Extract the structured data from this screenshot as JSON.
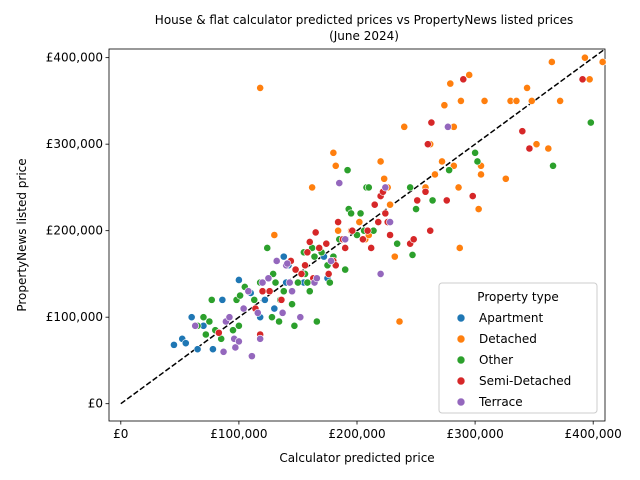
{
  "chart_data": {
    "type": "scatter",
    "title": "House & flat calculator predicted prices vs PropertyNews listed prices",
    "subtitle": "(June 2024)",
    "xlabel": "Calculator predicted price",
    "ylabel": "PropertyNews listed price",
    "xlim": [
      -10000,
      410000
    ],
    "ylim": [
      -20000,
      410000
    ],
    "x_ticks": [
      0,
      100000,
      200000,
      300000,
      400000
    ],
    "x_tick_labels": [
      "£0",
      "£100,000",
      "£200,000",
      "£300,000",
      "£400,000"
    ],
    "y_ticks": [
      0,
      100000,
      200000,
      300000,
      400000
    ],
    "y_tick_labels": [
      "£0",
      "£100,000",
      "£200,000",
      "£300,000",
      "£400,000"
    ],
    "grid": false,
    "reference_line": {
      "style": "dashed",
      "color": "#000000",
      "from": [
        0,
        0
      ],
      "to": [
        410000,
        410000
      ]
    },
    "legend": {
      "title": "Property type",
      "placement": "lower-right"
    },
    "series": [
      {
        "name": "Apartment",
        "color": "#1f77b4",
        "points": [
          [
            45000,
            68000
          ],
          [
            52000,
            75000
          ],
          [
            55000,
            70000
          ],
          [
            60000,
            100000
          ],
          [
            65000,
            63000
          ],
          [
            70000,
            90000
          ],
          [
            78000,
            63000
          ],
          [
            86000,
            120000
          ],
          [
            100000,
            143000
          ],
          [
            110000,
            128000
          ],
          [
            118000,
            100000
          ],
          [
            122000,
            120000
          ],
          [
            130000,
            110000
          ],
          [
            138000,
            170000
          ],
          [
            142000,
            160000
          ],
          [
            140000,
            140000
          ],
          [
            155000,
            140000
          ],
          [
            172000,
            170000
          ],
          [
            175000,
            145000
          ],
          [
            188000,
            190000
          ]
        ]
      },
      {
        "name": "Detached",
        "color": "#ff7f0e",
        "points": [
          [
            118000,
            365000
          ],
          [
            130000,
            195000
          ],
          [
            162000,
            250000
          ],
          [
            180000,
            290000
          ],
          [
            182000,
            275000
          ],
          [
            184000,
            200000
          ],
          [
            195000,
            200000
          ],
          [
            202000,
            210000
          ],
          [
            207000,
            190000
          ],
          [
            210000,
            195000
          ],
          [
            220000,
            280000
          ],
          [
            223000,
            260000
          ],
          [
            226000,
            250000
          ],
          [
            228000,
            230000
          ],
          [
            232000,
            170000
          ],
          [
            236000,
            95000
          ],
          [
            240000,
            320000
          ],
          [
            258000,
            250000
          ],
          [
            262000,
            300000
          ],
          [
            266000,
            265000
          ],
          [
            272000,
            280000
          ],
          [
            274000,
            345000
          ],
          [
            279000,
            370000
          ],
          [
            282000,
            320000
          ],
          [
            282000,
            275000
          ],
          [
            286000,
            250000
          ],
          [
            287000,
            180000
          ],
          [
            288000,
            350000
          ],
          [
            295000,
            380000
          ],
          [
            303000,
            225000
          ],
          [
            305000,
            275000
          ],
          [
            305000,
            265000
          ],
          [
            308000,
            350000
          ],
          [
            326000,
            260000
          ],
          [
            330000,
            350000
          ],
          [
            335000,
            350000
          ],
          [
            344000,
            365000
          ],
          [
            348000,
            350000
          ],
          [
            352000,
            300000
          ],
          [
            362000,
            295000
          ],
          [
            365000,
            395000
          ],
          [
            372000,
            350000
          ],
          [
            393000,
            400000
          ],
          [
            397000,
            375000
          ],
          [
            408000,
            395000
          ]
        ]
      },
      {
        "name": "Other",
        "color": "#2ca02c",
        "points": [
          [
            65000,
            90000
          ],
          [
            70000,
            100000
          ],
          [
            72000,
            80000
          ],
          [
            75000,
            95000
          ],
          [
            77000,
            120000
          ],
          [
            80000,
            85000
          ],
          [
            85000,
            75000
          ],
          [
            95000,
            85000
          ],
          [
            98000,
            120000
          ],
          [
            100000,
            90000
          ],
          [
            101000,
            125000
          ],
          [
            105000,
            135000
          ],
          [
            113000,
            120000
          ],
          [
            118000,
            140000
          ],
          [
            124000,
            180000
          ],
          [
            128000,
            100000
          ],
          [
            129000,
            150000
          ],
          [
            131000,
            140000
          ],
          [
            134000,
            95000
          ],
          [
            135000,
            120000
          ],
          [
            138000,
            130000
          ],
          [
            145000,
            115000
          ],
          [
            147000,
            90000
          ],
          [
            150000,
            140000
          ],
          [
            155000,
            175000
          ],
          [
            156000,
            150000
          ],
          [
            158000,
            140000
          ],
          [
            160000,
            130000
          ],
          [
            162000,
            180000
          ],
          [
            164000,
            170000
          ],
          [
            166000,
            95000
          ],
          [
            170000,
            175000
          ],
          [
            175000,
            160000
          ],
          [
            177000,
            140000
          ],
          [
            180000,
            170000
          ],
          [
            185000,
            190000
          ],
          [
            190000,
            155000
          ],
          [
            192000,
            270000
          ],
          [
            193000,
            225000
          ],
          [
            195000,
            220000
          ],
          [
            196000,
            200000
          ],
          [
            200000,
            195000
          ],
          [
            203000,
            220000
          ],
          [
            206000,
            200000
          ],
          [
            208000,
            250000
          ],
          [
            210000,
            250000
          ],
          [
            214000,
            200000
          ],
          [
            234000,
            185000
          ],
          [
            245000,
            250000
          ],
          [
            247000,
            172000
          ],
          [
            250000,
            225000
          ],
          [
            264000,
            235000
          ],
          [
            278000,
            270000
          ],
          [
            300000,
            290000
          ],
          [
            302000,
            280000
          ],
          [
            366000,
            275000
          ],
          [
            398000,
            325000
          ]
        ]
      },
      {
        "name": "Semi-Detached",
        "color": "#d62728",
        "points": [
          [
            83000,
            82000
          ],
          [
            114000,
            110000
          ],
          [
            118000,
            80000
          ],
          [
            120000,
            130000
          ],
          [
            126000,
            130000
          ],
          [
            136000,
            120000
          ],
          [
            144000,
            165000
          ],
          [
            148000,
            155000
          ],
          [
            153000,
            150000
          ],
          [
            156000,
            160000
          ],
          [
            158000,
            175000
          ],
          [
            160000,
            187000
          ],
          [
            163000,
            145000
          ],
          [
            165000,
            198000
          ],
          [
            168000,
            180000
          ],
          [
            174000,
            185000
          ],
          [
            176000,
            150000
          ],
          [
            180000,
            165000
          ],
          [
            182000,
            160000
          ],
          [
            184000,
            210000
          ],
          [
            188000,
            190000
          ],
          [
            190000,
            180000
          ],
          [
            196000,
            200000
          ],
          [
            205000,
            190000
          ],
          [
            209000,
            200000
          ],
          [
            212000,
            180000
          ],
          [
            215000,
            230000
          ],
          [
            218000,
            210000
          ],
          [
            220000,
            240000
          ],
          [
            222000,
            245000
          ],
          [
            224000,
            220000
          ],
          [
            226000,
            210000
          ],
          [
            228000,
            195000
          ],
          [
            245000,
            185000
          ],
          [
            248000,
            190000
          ],
          [
            251000,
            235000
          ],
          [
            258000,
            245000
          ],
          [
            260000,
            300000
          ],
          [
            262000,
            200000
          ],
          [
            263000,
            325000
          ],
          [
            276000,
            235000
          ],
          [
            290000,
            375000
          ],
          [
            298000,
            240000
          ],
          [
            340000,
            315000
          ],
          [
            346000,
            295000
          ],
          [
            391000,
            375000
          ]
        ]
      },
      {
        "name": "Terrace",
        "color": "#9467bd",
        "points": [
          [
            63000,
            90000
          ],
          [
            87000,
            60000
          ],
          [
            89000,
            95000
          ],
          [
            92000,
            100000
          ],
          [
            96000,
            75000
          ],
          [
            97000,
            65000
          ],
          [
            100000,
            72000
          ],
          [
            104000,
            110000
          ],
          [
            108000,
            130000
          ],
          [
            111000,
            55000
          ],
          [
            116000,
            105000
          ],
          [
            118000,
            75000
          ],
          [
            120000,
            140000
          ],
          [
            125000,
            145000
          ],
          [
            132000,
            165000
          ],
          [
            137000,
            105000
          ],
          [
            140000,
            160000
          ],
          [
            141000,
            162000
          ],
          [
            143000,
            140000
          ],
          [
            145000,
            130000
          ],
          [
            152000,
            100000
          ],
          [
            164000,
            140000
          ],
          [
            166000,
            145000
          ],
          [
            178000,
            165000
          ],
          [
            185000,
            255000
          ],
          [
            190000,
            190000
          ],
          [
            220000,
            150000
          ],
          [
            224000,
            250000
          ],
          [
            228000,
            210000
          ],
          [
            277000,
            320000
          ]
        ]
      }
    ]
  }
}
